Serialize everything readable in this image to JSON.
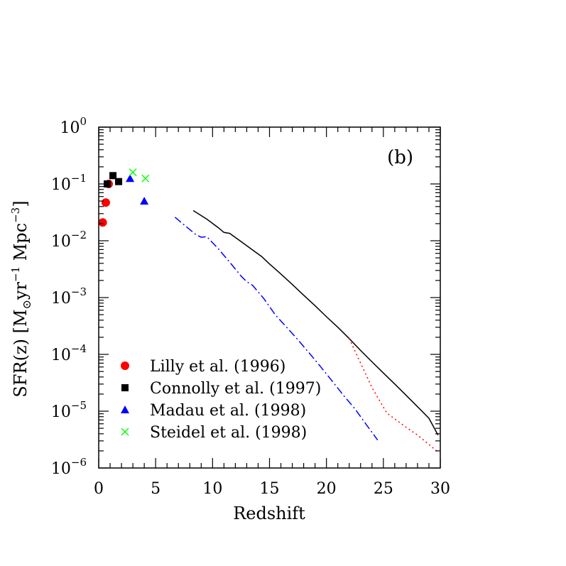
{
  "chart_data": {
    "type": "scatter",
    "title": "",
    "panel_label": "(b)",
    "xlabel": "Redshift",
    "ylabel": {
      "prefix": "SFR(z)  [M",
      "sub": "⊙",
      "mid": "yr",
      "sup1": "−1",
      "mid2": " Mpc",
      "sup2": "−3",
      "suffix": "]"
    },
    "xlim": [
      0,
      30
    ],
    "ylim": [
      1e-06,
      1
    ],
    "yscale": "log",
    "x_ticks": [
      {
        "value": 0,
        "label": "0"
      },
      {
        "value": 5,
        "label": "5"
      },
      {
        "value": 10,
        "label": "10"
      },
      {
        "value": 15,
        "label": "15"
      },
      {
        "value": 20,
        "label": "20"
      },
      {
        "value": 25,
        "label": "25"
      },
      {
        "value": 30,
        "label": "30"
      }
    ],
    "y_ticks": [
      {
        "exp": 0,
        "base": "10",
        "sup": "0"
      },
      {
        "exp": -1,
        "base": "10",
        "sup": "−1"
      },
      {
        "exp": -2,
        "base": "10",
        "sup": "−2"
      },
      {
        "exp": -3,
        "base": "10",
        "sup": "−3"
      },
      {
        "exp": -4,
        "base": "10",
        "sup": "−4"
      },
      {
        "exp": -5,
        "base": "10",
        "sup": "−5"
      },
      {
        "exp": -6,
        "base": "10",
        "sup": "−6"
      }
    ],
    "grid": false,
    "legend_position": "bottom-left",
    "points": [
      {
        "name": "Lilly et al. (1996)",
        "marker": "circle",
        "color": "#ff0000",
        "x": [
          0.35,
          0.62,
          0.87
        ],
        "y": [
          0.021,
          0.047,
          0.1
        ]
      },
      {
        "name": "Connolly et al. (1997)",
        "marker": "square",
        "color": "#000000",
        "x": [
          0.75,
          1.25,
          1.75
        ],
        "y": [
          0.1,
          0.14,
          0.11
        ]
      },
      {
        "name": "Madau et al. (1998)",
        "marker": "triangle",
        "color": "#0000ff",
        "x": [
          2.75,
          4.0
        ],
        "y": [
          0.125,
          0.05
        ]
      },
      {
        "name": "Steidel et al. (1998)",
        "marker": "cross",
        "color": "#00ff00",
        "x": [
          3.0,
          4.1
        ],
        "y": [
          0.16,
          0.125
        ]
      }
    ],
    "lines": [
      {
        "style": "solid",
        "color": "#000000",
        "x": [
          8.3,
          9.5,
          10.5,
          11,
          11.5,
          12.5,
          13.5,
          14.3,
          15,
          16,
          17,
          18,
          19,
          20,
          21,
          22,
          23,
          24,
          25,
          26,
          27,
          28,
          29,
          29.8
        ],
        "y": [
          0.034,
          0.024,
          0.017,
          0.014,
          0.0135,
          0.0097,
          0.0069,
          0.0053,
          0.0039,
          0.0026,
          0.0017,
          0.0011,
          0.00072,
          0.00046,
          0.0003,
          0.00019,
          0.000117,
          7.4e-05,
          4.7e-05,
          3e-05,
          1.9e-05,
          1.2e-05,
          7.5e-06,
          3.8e-06
        ]
      },
      {
        "style": "dashdot",
        "color": "#0000ff",
        "x": [
          6.7,
          7.5,
          8.5,
          9,
          9.5,
          10.5,
          11.5,
          12.5,
          13,
          13.5,
          14.5,
          15.5,
          16.5,
          17.5,
          18.5,
          19.5,
          20.5,
          21.5,
          22.5,
          23.5,
          24.5
        ],
        "y": [
          0.026,
          0.019,
          0.013,
          0.0115,
          0.0118,
          0.0072,
          0.0042,
          0.0024,
          0.0019,
          0.00165,
          0.00096,
          0.0005,
          0.0003,
          0.00018,
          0.000105,
          6e-05,
          3.4e-05,
          1.9e-05,
          1.1e-05,
          5.8e-06,
          3.1e-06
        ]
      },
      {
        "style": "dotted",
        "color": "#ff0000",
        "x": [
          22,
          23,
          24,
          25.3,
          26,
          27,
          28,
          29,
          29.8
        ],
        "y": [
          0.00019,
          7e-05,
          2.6e-05,
          9.3e-06,
          7.3e-06,
          5.2e-06,
          3.8e-06,
          2.6e-06,
          1.9e-06
        ]
      }
    ]
  }
}
